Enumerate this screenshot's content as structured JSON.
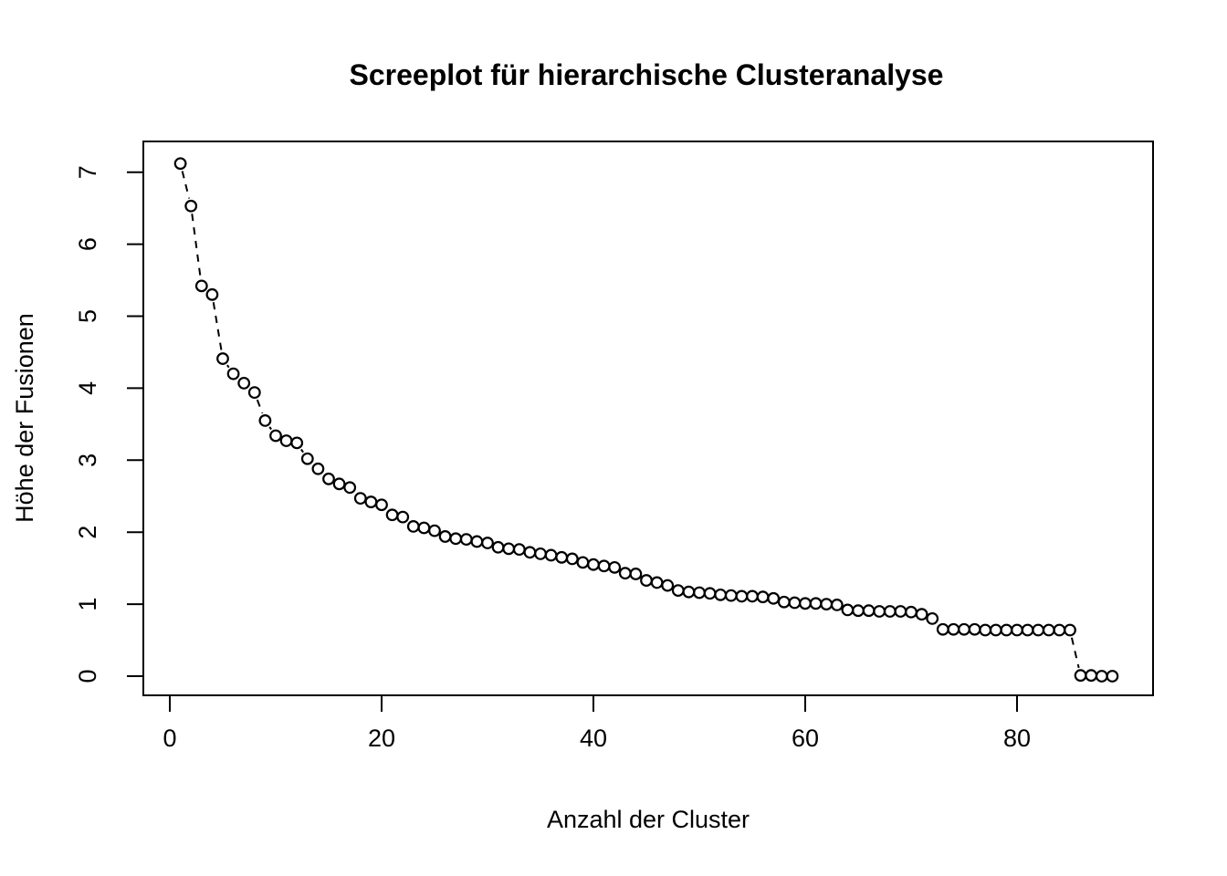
{
  "title": "Screeplot für hierarchische Clusteranalyse",
  "x_axis": {
    "label": "Anzahl der Cluster",
    "ticks": [
      0,
      20,
      40,
      60,
      80
    ]
  },
  "y_axis": {
    "label": "Höhe der Fusionen",
    "ticks": [
      0,
      1,
      2,
      3,
      4,
      5,
      6,
      7
    ]
  },
  "colors": {
    "foreground": "#000000",
    "background": "#ffffff"
  },
  "chart_data": {
    "type": "scatter",
    "title": "Screeplot für hierarchische Clusteranalyse",
    "xlabel": "Anzahl der Cluster",
    "ylabel": "Höhe der Fusionen",
    "xlim": [
      0,
      89
    ],
    "ylim": [
      0,
      7.13
    ],
    "grid": false,
    "legend": "none",
    "marker": "open-circle",
    "line_style": "dashed",
    "x": [
      1,
      2,
      3,
      4,
      5,
      6,
      7,
      8,
      9,
      10,
      11,
      12,
      13,
      14,
      15,
      16,
      17,
      18,
      19,
      20,
      21,
      22,
      23,
      24,
      25,
      26,
      27,
      28,
      29,
      30,
      31,
      32,
      33,
      34,
      35,
      36,
      37,
      38,
      39,
      40,
      41,
      42,
      43,
      44,
      45,
      46,
      47,
      48,
      49,
      50,
      51,
      52,
      53,
      54,
      55,
      56,
      57,
      58,
      59,
      60,
      61,
      62,
      63,
      64,
      65,
      66,
      67,
      68,
      69,
      70,
      71,
      72,
      73,
      74,
      75,
      76,
      77,
      78,
      79,
      80,
      81,
      82,
      83,
      84,
      85,
      86,
      87,
      88,
      89
    ],
    "y": [
      7.12,
      6.53,
      5.42,
      5.3,
      4.41,
      4.2,
      4.07,
      3.94,
      3.55,
      3.34,
      3.27,
      3.24,
      3.02,
      2.88,
      2.74,
      2.67,
      2.62,
      2.47,
      2.42,
      2.38,
      2.24,
      2.21,
      2.08,
      2.06,
      2.02,
      1.94,
      1.91,
      1.9,
      1.87,
      1.85,
      1.79,
      1.77,
      1.76,
      1.72,
      1.7,
      1.68,
      1.65,
      1.63,
      1.58,
      1.55,
      1.53,
      1.51,
      1.43,
      1.42,
      1.33,
      1.3,
      1.26,
      1.19,
      1.17,
      1.16,
      1.15,
      1.13,
      1.12,
      1.11,
      1.11,
      1.1,
      1.08,
      1.03,
      1.02,
      1.01,
      1.01,
      1.0,
      0.99,
      0.92,
      0.91,
      0.91,
      0.9,
      0.9,
      0.9,
      0.89,
      0.86,
      0.8,
      0.65,
      0.65,
      0.65,
      0.65,
      0.64,
      0.64,
      0.64,
      0.64,
      0.64,
      0.64,
      0.64,
      0.64,
      0.64,
      0.01,
      0.01,
      0.0,
      0.0
    ]
  }
}
